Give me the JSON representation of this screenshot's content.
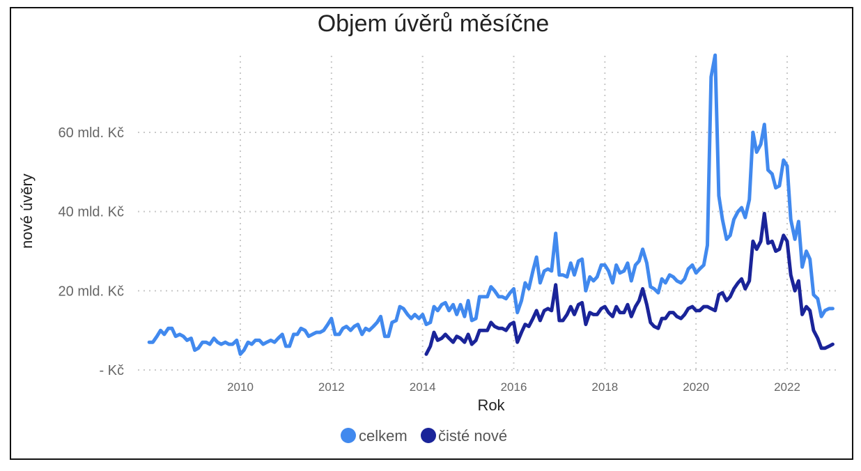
{
  "chart_data": {
    "type": "line",
    "title": "Objem úvěrů měsíčne",
    "xlabel": "Rok",
    "ylabel": "nové úvěry",
    "xlim": [
      2008.0,
      2023.1
    ],
    "ylim": [
      0,
      80
    ],
    "grid": true,
    "legend_position": "bottom",
    "yticks": [
      {
        "value": 0,
        "label": "- Kč"
      },
      {
        "value": 20,
        "label": "20 mld. Kč"
      },
      {
        "value": 40,
        "label": "40 mld. Kč"
      },
      {
        "value": 60,
        "label": "60 mld. Kč"
      }
    ],
    "xticks": [
      {
        "value": 2010,
        "label": "2010"
      },
      {
        "value": 2012,
        "label": "2012"
      },
      {
        "value": 2014,
        "label": "2014"
      },
      {
        "value": 2016,
        "label": "2016"
      },
      {
        "value": 2018,
        "label": "2018"
      },
      {
        "value": 2020,
        "label": "2020"
      },
      {
        "value": 2022,
        "label": "2022"
      }
    ],
    "series": [
      {
        "name": "celkem",
        "color": "#4189ee",
        "points": [
          [
            2008.0,
            7.0
          ],
          [
            2008.08,
            7.0
          ],
          [
            2008.17,
            8.5
          ],
          [
            2008.25,
            10.0
          ],
          [
            2008.33,
            9.0
          ],
          [
            2008.42,
            10.5
          ],
          [
            2008.5,
            10.5
          ],
          [
            2008.58,
            8.5
          ],
          [
            2008.67,
            9.0
          ],
          [
            2008.75,
            8.5
          ],
          [
            2008.83,
            7.5
          ],
          [
            2008.92,
            8.0
          ],
          [
            2009.0,
            5.0
          ],
          [
            2009.08,
            5.5
          ],
          [
            2009.17,
            7.0
          ],
          [
            2009.25,
            7.0
          ],
          [
            2009.33,
            6.5
          ],
          [
            2009.42,
            8.0
          ],
          [
            2009.5,
            7.0
          ],
          [
            2009.58,
            6.5
          ],
          [
            2009.67,
            7.0
          ],
          [
            2009.75,
            6.5
          ],
          [
            2009.83,
            6.5
          ],
          [
            2009.92,
            7.5
          ],
          [
            2010.0,
            4.0
          ],
          [
            2010.08,
            5.0
          ],
          [
            2010.17,
            7.0
          ],
          [
            2010.25,
            6.5
          ],
          [
            2010.33,
            7.5
          ],
          [
            2010.42,
            7.5
          ],
          [
            2010.5,
            6.5
          ],
          [
            2010.58,
            7.0
          ],
          [
            2010.67,
            7.5
          ],
          [
            2010.75,
            7.0
          ],
          [
            2010.83,
            8.0
          ],
          [
            2010.92,
            9.0
          ],
          [
            2011.0,
            6.0
          ],
          [
            2011.08,
            6.0
          ],
          [
            2011.17,
            9.0
          ],
          [
            2011.25,
            9.0
          ],
          [
            2011.33,
            10.5
          ],
          [
            2011.42,
            10.0
          ],
          [
            2011.5,
            8.5
          ],
          [
            2011.58,
            9.0
          ],
          [
            2011.67,
            9.5
          ],
          [
            2011.75,
            9.5
          ],
          [
            2011.83,
            10.0
          ],
          [
            2011.92,
            11.5
          ],
          [
            2012.0,
            13.0
          ],
          [
            2012.08,
            9.0
          ],
          [
            2012.17,
            9.0
          ],
          [
            2012.25,
            10.5
          ],
          [
            2012.33,
            11.0
          ],
          [
            2012.42,
            10.0
          ],
          [
            2012.5,
            11.0
          ],
          [
            2012.58,
            11.5
          ],
          [
            2012.67,
            9.0
          ],
          [
            2012.75,
            10.5
          ],
          [
            2012.83,
            10.0
          ],
          [
            2012.92,
            11.0
          ],
          [
            2013.0,
            12.0
          ],
          [
            2013.08,
            13.5
          ],
          [
            2013.17,
            8.5
          ],
          [
            2013.25,
            8.5
          ],
          [
            2013.33,
            12.0
          ],
          [
            2013.42,
            12.5
          ],
          [
            2013.5,
            16.0
          ],
          [
            2013.58,
            15.5
          ],
          [
            2013.67,
            14.0
          ],
          [
            2013.75,
            13.0
          ],
          [
            2013.83,
            14.0
          ],
          [
            2013.92,
            13.0
          ],
          [
            2014.0,
            14.0
          ],
          [
            2014.08,
            11.5
          ],
          [
            2014.17,
            12.0
          ],
          [
            2014.25,
            16.0
          ],
          [
            2014.33,
            15.0
          ],
          [
            2014.42,
            16.5
          ],
          [
            2014.5,
            17.0
          ],
          [
            2014.58,
            15.0
          ],
          [
            2014.67,
            16.5
          ],
          [
            2014.75,
            14.0
          ],
          [
            2014.83,
            16.5
          ],
          [
            2014.92,
            13.5
          ],
          [
            2015.0,
            17.5
          ],
          [
            2015.08,
            12.5
          ],
          [
            2015.17,
            13.0
          ],
          [
            2015.25,
            18.5
          ],
          [
            2015.33,
            18.5
          ],
          [
            2015.42,
            18.5
          ],
          [
            2015.5,
            21.0
          ],
          [
            2015.58,
            20.0
          ],
          [
            2015.67,
            18.5
          ],
          [
            2015.75,
            18.5
          ],
          [
            2015.83,
            18.0
          ],
          [
            2015.92,
            19.5
          ],
          [
            2016.0,
            20.5
          ],
          [
            2016.08,
            14.5
          ],
          [
            2016.17,
            17.5
          ],
          [
            2016.25,
            22.0
          ],
          [
            2016.33,
            20.5
          ],
          [
            2016.42,
            25.0
          ],
          [
            2016.5,
            28.5
          ],
          [
            2016.58,
            22.0
          ],
          [
            2016.67,
            25.0
          ],
          [
            2016.75,
            25.5
          ],
          [
            2016.83,
            25.0
          ],
          [
            2016.92,
            34.5
          ],
          [
            2017.0,
            24.0
          ],
          [
            2017.08,
            24.0
          ],
          [
            2017.17,
            23.5
          ],
          [
            2017.25,
            27.0
          ],
          [
            2017.33,
            24.0
          ],
          [
            2017.42,
            27.5
          ],
          [
            2017.5,
            28.0
          ],
          [
            2017.58,
            20.0
          ],
          [
            2017.67,
            23.5
          ],
          [
            2017.75,
            22.5
          ],
          [
            2017.83,
            23.5
          ],
          [
            2017.92,
            26.5
          ],
          [
            2018.0,
            26.5
          ],
          [
            2018.08,
            25.0
          ],
          [
            2018.17,
            22.0
          ],
          [
            2018.25,
            26.5
          ],
          [
            2018.33,
            24.5
          ],
          [
            2018.42,
            25.0
          ],
          [
            2018.5,
            27.0
          ],
          [
            2018.58,
            22.5
          ],
          [
            2018.67,
            26.5
          ],
          [
            2018.75,
            27.5
          ],
          [
            2018.83,
            30.5
          ],
          [
            2018.92,
            27.0
          ],
          [
            2019.0,
            21.0
          ],
          [
            2019.08,
            20.5
          ],
          [
            2019.17,
            19.5
          ],
          [
            2019.25,
            23.0
          ],
          [
            2019.33,
            22.0
          ],
          [
            2019.42,
            24.0
          ],
          [
            2019.5,
            23.5
          ],
          [
            2019.58,
            22.5
          ],
          [
            2019.67,
            22.0
          ],
          [
            2019.75,
            23.0
          ],
          [
            2019.83,
            25.5
          ],
          [
            2019.92,
            26.5
          ],
          [
            2020.0,
            24.5
          ],
          [
            2020.08,
            25.5
          ],
          [
            2020.17,
            26.5
          ],
          [
            2020.25,
            31.5
          ],
          [
            2020.33,
            74.0
          ],
          [
            2020.42,
            79.5
          ],
          [
            2020.5,
            44.0
          ],
          [
            2020.58,
            38.0
          ],
          [
            2020.67,
            33.0
          ],
          [
            2020.75,
            34.0
          ],
          [
            2020.83,
            38.0
          ],
          [
            2020.92,
            40.0
          ],
          [
            2021.0,
            41.0
          ],
          [
            2021.08,
            38.5
          ],
          [
            2021.17,
            43.0
          ],
          [
            2021.25,
            60.0
          ],
          [
            2021.33,
            55.0
          ],
          [
            2021.42,
            57.0
          ],
          [
            2021.5,
            62.0
          ],
          [
            2021.58,
            50.5
          ],
          [
            2021.67,
            49.5
          ],
          [
            2021.75,
            46.0
          ],
          [
            2021.83,
            46.5
          ],
          [
            2021.92,
            53.0
          ],
          [
            2022.0,
            51.5
          ],
          [
            2022.08,
            38.0
          ],
          [
            2022.17,
            33.0
          ],
          [
            2022.25,
            37.5
          ],
          [
            2022.33,
            26.0
          ],
          [
            2022.42,
            30.0
          ],
          [
            2022.5,
            28.0
          ],
          [
            2022.58,
            19.0
          ],
          [
            2022.67,
            18.0
          ],
          [
            2022.75,
            13.5
          ],
          [
            2022.83,
            15.0
          ],
          [
            2022.92,
            15.5
          ],
          [
            2023.0,
            15.5
          ]
        ]
      },
      {
        "name": "čisté nové",
        "color": "#1a2499",
        "points": [
          [
            2014.08,
            4.0
          ],
          [
            2014.17,
            6.0
          ],
          [
            2014.25,
            9.5
          ],
          [
            2014.33,
            7.5
          ],
          [
            2014.42,
            8.0
          ],
          [
            2014.5,
            9.0
          ],
          [
            2014.58,
            8.0
          ],
          [
            2014.67,
            7.0
          ],
          [
            2014.75,
            8.5
          ],
          [
            2014.83,
            8.0
          ],
          [
            2014.92,
            7.0
          ],
          [
            2015.0,
            9.0
          ],
          [
            2015.08,
            6.5
          ],
          [
            2015.17,
            7.5
          ],
          [
            2015.25,
            10.0
          ],
          [
            2015.33,
            10.0
          ],
          [
            2015.42,
            10.0
          ],
          [
            2015.5,
            12.0
          ],
          [
            2015.58,
            11.0
          ],
          [
            2015.67,
            10.5
          ],
          [
            2015.75,
            10.5
          ],
          [
            2015.83,
            10.0
          ],
          [
            2015.92,
            11.5
          ],
          [
            2016.0,
            12.0
          ],
          [
            2016.08,
            7.0
          ],
          [
            2016.17,
            9.5
          ],
          [
            2016.25,
            11.5
          ],
          [
            2016.33,
            11.0
          ],
          [
            2016.42,
            13.0
          ],
          [
            2016.5,
            15.0
          ],
          [
            2016.58,
            12.5
          ],
          [
            2016.67,
            15.0
          ],
          [
            2016.75,
            15.5
          ],
          [
            2016.83,
            15.0
          ],
          [
            2016.92,
            21.5
          ],
          [
            2017.0,
            12.5
          ],
          [
            2017.08,
            12.5
          ],
          [
            2017.17,
            14.0
          ],
          [
            2017.25,
            16.0
          ],
          [
            2017.33,
            14.0
          ],
          [
            2017.42,
            16.5
          ],
          [
            2017.5,
            17.0
          ],
          [
            2017.58,
            11.5
          ],
          [
            2017.67,
            14.5
          ],
          [
            2017.75,
            14.0
          ],
          [
            2017.83,
            14.0
          ],
          [
            2017.92,
            15.5
          ],
          [
            2018.0,
            16.0
          ],
          [
            2018.08,
            14.5
          ],
          [
            2018.17,
            13.5
          ],
          [
            2018.25,
            16.0
          ],
          [
            2018.33,
            14.5
          ],
          [
            2018.42,
            14.5
          ],
          [
            2018.5,
            16.5
          ],
          [
            2018.58,
            13.5
          ],
          [
            2018.67,
            16.0
          ],
          [
            2018.75,
            17.5
          ],
          [
            2018.83,
            20.5
          ],
          [
            2018.92,
            16.5
          ],
          [
            2019.0,
            12.0
          ],
          [
            2019.08,
            11.0
          ],
          [
            2019.17,
            10.5
          ],
          [
            2019.25,
            13.0
          ],
          [
            2019.33,
            13.0
          ],
          [
            2019.42,
            14.5
          ],
          [
            2019.5,
            14.5
          ],
          [
            2019.58,
            13.5
          ],
          [
            2019.67,
            13.0
          ],
          [
            2019.75,
            14.0
          ],
          [
            2019.83,
            15.5
          ],
          [
            2019.92,
            16.0
          ],
          [
            2020.0,
            15.0
          ],
          [
            2020.08,
            15.0
          ],
          [
            2020.17,
            16.0
          ],
          [
            2020.25,
            16.0
          ],
          [
            2020.33,
            15.5
          ],
          [
            2020.42,
            15.0
          ],
          [
            2020.5,
            19.0
          ],
          [
            2020.58,
            19.5
          ],
          [
            2020.67,
            17.5
          ],
          [
            2020.75,
            18.5
          ],
          [
            2020.83,
            20.5
          ],
          [
            2020.92,
            22.0
          ],
          [
            2021.0,
            23.0
          ],
          [
            2021.08,
            20.5
          ],
          [
            2021.17,
            22.5
          ],
          [
            2021.25,
            32.5
          ],
          [
            2021.33,
            30.5
          ],
          [
            2021.42,
            32.5
          ],
          [
            2021.5,
            39.5
          ],
          [
            2021.58,
            32.0
          ],
          [
            2021.67,
            32.5
          ],
          [
            2021.75,
            30.0
          ],
          [
            2021.83,
            30.5
          ],
          [
            2021.92,
            34.0
          ],
          [
            2022.0,
            32.5
          ],
          [
            2022.08,
            24.0
          ],
          [
            2022.17,
            20.0
          ],
          [
            2022.25,
            22.5
          ],
          [
            2022.33,
            14.0
          ],
          [
            2022.42,
            16.0
          ],
          [
            2022.5,
            15.0
          ],
          [
            2022.58,
            10.0
          ],
          [
            2022.67,
            8.0
          ],
          [
            2022.75,
            5.5
          ],
          [
            2022.83,
            5.5
          ],
          [
            2022.92,
            6.0
          ],
          [
            2023.0,
            6.5
          ]
        ]
      }
    ]
  }
}
